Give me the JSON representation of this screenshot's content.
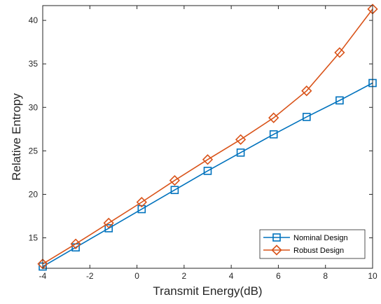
{
  "chart_data": {
    "type": "line",
    "title": "",
    "xlabel": "Transmit Energy(dB)",
    "ylabel": "Relative Entropy",
    "xlim": [
      -4,
      10
    ],
    "ylim": [
      11.5,
      41.7
    ],
    "xticks": [
      -4,
      -2,
      0,
      2,
      4,
      6,
      8,
      10
    ],
    "yticks": [
      15,
      20,
      25,
      30,
      35,
      40
    ],
    "x": [
      -4,
      -2.6,
      -1.2,
      0.2,
      1.6,
      3,
      4.4,
      5.8,
      7.2,
      8.6,
      10
    ],
    "series": [
      {
        "name": "Nominal Design",
        "marker": "square",
        "color": "#0072BD",
        "values": [
          11.7,
          13.9,
          16.1,
          18.3,
          20.5,
          22.7,
          24.8,
          26.9,
          28.9,
          30.8,
          32.8
        ]
      },
      {
        "name": "Robust Design",
        "marker": "diamond",
        "color": "#D95319",
        "values": [
          12.0,
          14.3,
          16.7,
          19.1,
          21.6,
          24.0,
          26.3,
          28.8,
          31.9,
          36.3,
          41.3
        ]
      }
    ],
    "grid": false,
    "legend": "bottom-right"
  }
}
